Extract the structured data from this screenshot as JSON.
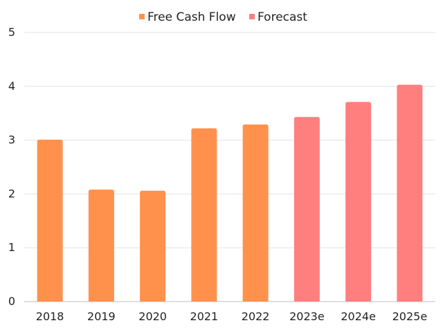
{
  "chart_data": {
    "type": "bar",
    "categories": [
      "2018",
      "2019",
      "2020",
      "2021",
      "2022",
      "2023e",
      "2024e",
      "2025e"
    ],
    "series": [
      {
        "name": "Free Cash Flow",
        "color": "#FF914D",
        "values": [
          3.01,
          2.08,
          2.06,
          3.22,
          3.29,
          null,
          null,
          null
        ]
      },
      {
        "name": "Forecast",
        "color": "#FF7F7F",
        "values": [
          null,
          null,
          null,
          null,
          null,
          3.43,
          3.71,
          4.03
        ]
      }
    ],
    "title": "",
    "xlabel": "",
    "ylabel": "",
    "ylim": [
      0,
      5
    ],
    "yticks": [
      0,
      1,
      2,
      3,
      4,
      5
    ],
    "grid": true,
    "legend": "top-center"
  }
}
